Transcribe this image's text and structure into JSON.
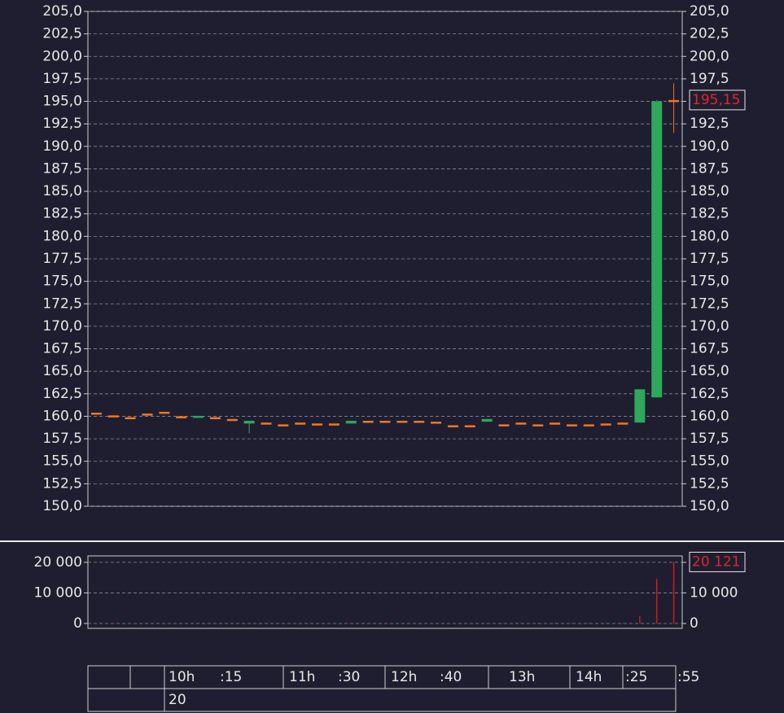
{
  "chart_data": [
    {
      "type": "candlestick",
      "open": [
        160.4,
        160.1,
        159.9,
        160.3,
        160.5,
        160.0,
        159.95,
        159.9,
        159.7,
        159.2,
        159.3,
        159.1,
        159.3,
        159.2,
        159.2,
        159.2,
        159.5,
        159.5,
        159.5,
        159.5,
        159.4,
        159.0,
        159.0,
        159.4,
        159.1,
        159.3,
        159.1,
        159.3,
        159.1,
        159.1,
        159.2,
        159.3,
        159.3,
        162.1,
        195.15
      ],
      "high": [
        160.4,
        160.1,
        159.9,
        160.3,
        160.5,
        160.0,
        160.05,
        159.9,
        159.7,
        159.5,
        159.3,
        159.1,
        159.3,
        159.2,
        159.2,
        159.5,
        159.5,
        159.5,
        159.5,
        159.5,
        159.4,
        159.0,
        159.0,
        159.7,
        159.1,
        159.3,
        159.1,
        159.3,
        159.1,
        159.1,
        159.2,
        159.3,
        163.0,
        195.15,
        197.0
      ],
      "low": [
        160.4,
        160.0,
        159.9,
        160.3,
        160.5,
        160.0,
        159.95,
        159.85,
        159.6,
        158.1,
        159.1,
        159.1,
        159.3,
        159.2,
        159.2,
        159.2,
        159.5,
        159.5,
        159.5,
        159.5,
        159.4,
        159.0,
        159.0,
        159.4,
        159.1,
        159.1,
        158.9,
        159.3,
        159.1,
        159.1,
        159.2,
        159.3,
        159.3,
        162.1,
        191.5
      ],
      "close": [
        160.4,
        160.0,
        159.9,
        160.3,
        160.5,
        160.0,
        160.05,
        159.85,
        159.6,
        159.5,
        159.1,
        159.1,
        159.3,
        159.2,
        159.2,
        159.5,
        159.5,
        159.5,
        159.5,
        159.5,
        159.4,
        159.0,
        159.0,
        159.7,
        159.1,
        159.1,
        158.9,
        159.3,
        159.1,
        159.1,
        159.2,
        159.3,
        163.0,
        195.0,
        195.15
      ],
      "up_color": "#2ea85a",
      "down_color": "#f07820",
      "ylim": [
        150,
        205
      ],
      "yticks": [
        {
          "value": 150,
          "label": "150,0"
        },
        {
          "value": 152.5,
          "label": "152,5"
        },
        {
          "value": 155,
          "label": "155,0"
        },
        {
          "value": 157.5,
          "label": "157,5"
        },
        {
          "value": 160,
          "label": "160,0"
        },
        {
          "value": 162.5,
          "label": "162,5"
        },
        {
          "value": 165,
          "label": "165,0"
        },
        {
          "value": 167.5,
          "label": "167,5"
        },
        {
          "value": 170,
          "label": "170,0"
        },
        {
          "value": 172.5,
          "label": "172,5"
        },
        {
          "value": 175,
          "label": "175,0"
        },
        {
          "value": 177.5,
          "label": "177,5"
        },
        {
          "value": 180,
          "label": "180,0"
        },
        {
          "value": 182.5,
          "label": "182,5"
        },
        {
          "value": 185,
          "label": "185,0"
        },
        {
          "value": 187.5,
          "label": "187,5"
        },
        {
          "value": 190,
          "label": "190,0"
        },
        {
          "value": 192.5,
          "label": "192,5"
        },
        {
          "value": 195,
          "label": "195,0"
        },
        {
          "value": 197.5,
          "label": "197,5"
        },
        {
          "value": 200,
          "label": "200,0"
        },
        {
          "value": 202.5,
          "label": "202,5"
        },
        {
          "value": 205,
          "label": "205,0"
        }
      ],
      "last": {
        "value": 195.15,
        "label": "195,15"
      },
      "grid": true
    },
    {
      "type": "bar",
      "values": [
        200,
        200,
        200,
        200,
        200,
        200,
        200,
        200,
        200,
        200,
        200,
        200,
        200,
        200,
        200,
        200,
        200,
        200,
        200,
        200,
        200,
        200,
        200,
        200,
        200,
        200,
        200,
        200,
        200,
        200,
        200,
        200,
        2400,
        14700,
        20121
      ],
      "color": "#d01c1c",
      "ylim": [
        -1600,
        22100
      ],
      "yticks": [
        {
          "value": 0,
          "label": "0"
        },
        {
          "value": 10000,
          "label": "10 000"
        },
        {
          "value": 20000,
          "label": "20 000"
        }
      ],
      "last": {
        "value": 20121,
        "label": "20 121"
      },
      "grid": true
    }
  ],
  "time_axis": {
    "row1": [
      "10h",
      ":15",
      "11h",
      ":30",
      "12h",
      ":40",
      "13h",
      "14h",
      ":25",
      ":55"
    ],
    "row2": [
      "20"
    ]
  }
}
